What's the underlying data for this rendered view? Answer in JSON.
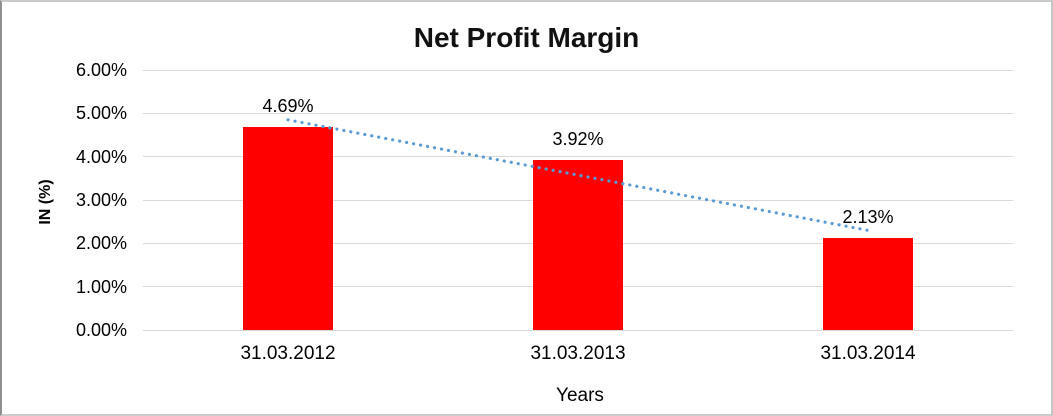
{
  "chart_data": {
    "type": "bar",
    "title": "Net Profit Margin",
    "xlabel": "Years",
    "ylabel": "IN (%)",
    "categories": [
      "31.03.2012",
      "31.03.2013",
      "31.03.2014"
    ],
    "values": [
      4.69,
      3.92,
      2.13
    ],
    "data_labels": [
      "4.69%",
      "3.92%",
      "2.13%"
    ],
    "yticks": [
      {
        "value": 0,
        "label": "0.00%"
      },
      {
        "value": 1,
        "label": "1.00%"
      },
      {
        "value": 2,
        "label": "2.00%"
      },
      {
        "value": 3,
        "label": "3.00%"
      },
      {
        "value": 4,
        "label": "4.00%"
      },
      {
        "value": 5,
        "label": "5.00%"
      },
      {
        "value": 6,
        "label": "6.00%"
      },
      {
        "value": 0,
        "label": ""
      }
    ],
    "ylim": [
      0,
      6
    ],
    "grid": true,
    "legend": "none",
    "bar_color": "#ff0000",
    "gridline_color": "#d9d9d9",
    "trendline": {
      "type": "linear",
      "style": "dotted",
      "color": "#5b9bd5",
      "start_value": 4.85,
      "end_value": 2.3
    }
  }
}
